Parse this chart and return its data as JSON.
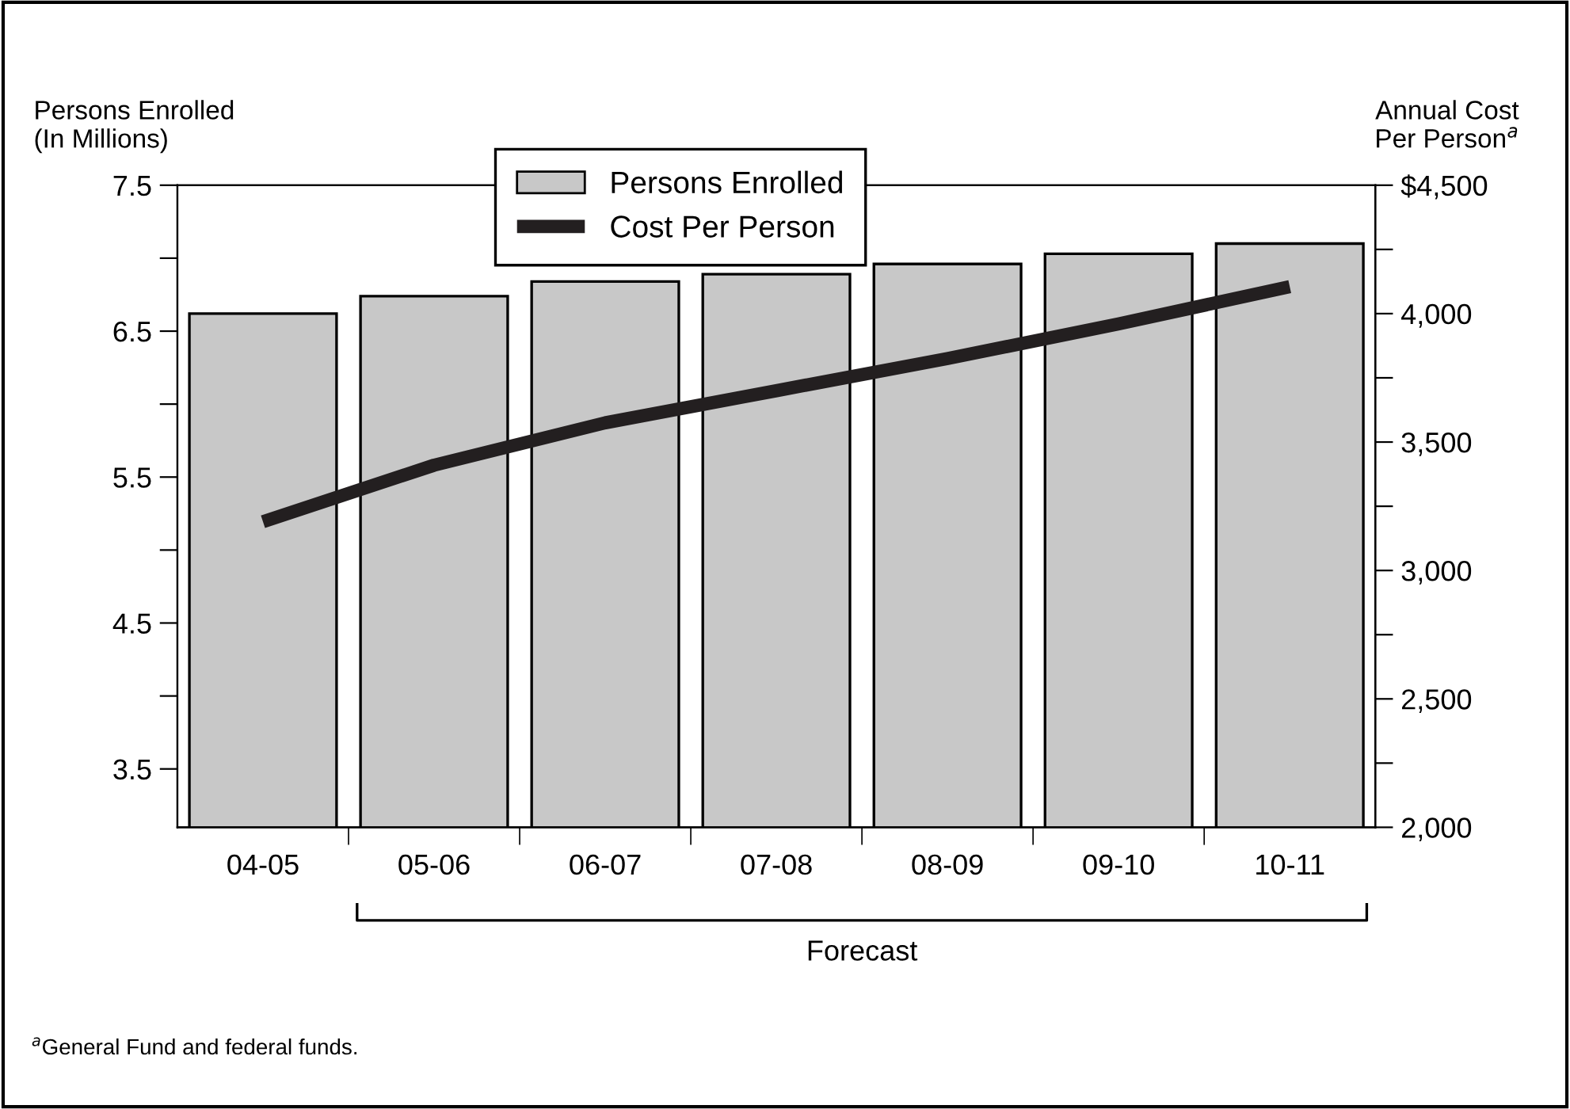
{
  "chart_data": {
    "type": "bar",
    "categories": [
      "04-05",
      "05-06",
      "06-07",
      "07-08",
      "08-09",
      "09-10",
      "10-11"
    ],
    "series": [
      {
        "name": "Persons Enrolled",
        "color": "#c8c8c8",
        "values": [
          6.62,
          6.74,
          6.84,
          6.89,
          6.96,
          7.03,
          7.1
        ]
      },
      {
        "name": "Cost Per Person",
        "type": "line",
        "axis": "y2",
        "color": "#231f20",
        "values": [
          3190,
          3410,
          3575,
          3700,
          3825,
          3960,
          4105
        ]
      }
    ],
    "ylabel": "Persons Enrolled\n(In Millions)",
    "y2label": "Annual Cost\nPer Person$^{a}$",
    "ylim": [
      3.1,
      7.5
    ],
    "yticks": [
      {
        "value": 3.5,
        "label": "3.5"
      },
      {
        "value": 4.0,
        "label": null
      },
      {
        "value": 4.5,
        "label": "4.5"
      },
      {
        "value": 5.0,
        "label": null
      },
      {
        "value": 5.5,
        "label": "5.5"
      },
      {
        "value": 6.0,
        "label": null
      },
      {
        "value": 6.5,
        "label": "6.5"
      },
      {
        "value": 7.0,
        "label": null
      },
      {
        "value": 7.5,
        "label": "7.5"
      }
    ],
    "y2lim": [
      2000,
      4500
    ],
    "y2ticks": [
      {
        "value": 2000,
        "label": "2,000"
      },
      {
        "value": 2250,
        "label": null
      },
      {
        "value": 2500,
        "label": "2,500"
      },
      {
        "value": 2750,
        "label": null
      },
      {
        "value": 3000,
        "label": "3,000"
      },
      {
        "value": 3250,
        "label": null
      },
      {
        "value": 3500,
        "label": "3,500"
      },
      {
        "value": 3750,
        "label": null
      },
      {
        "value": 4000,
        "label": "4,000"
      },
      {
        "value": 4250,
        "label": null
      },
      {
        "value": 4500,
        "label": "$4,500"
      }
    ],
    "legend": "top",
    "grid": false,
    "line_style": "solid",
    "marker": "none",
    "annotations": [
      "Forecast",
      "$^{a}$General Fund and federal funds."
    ]
  }
}
